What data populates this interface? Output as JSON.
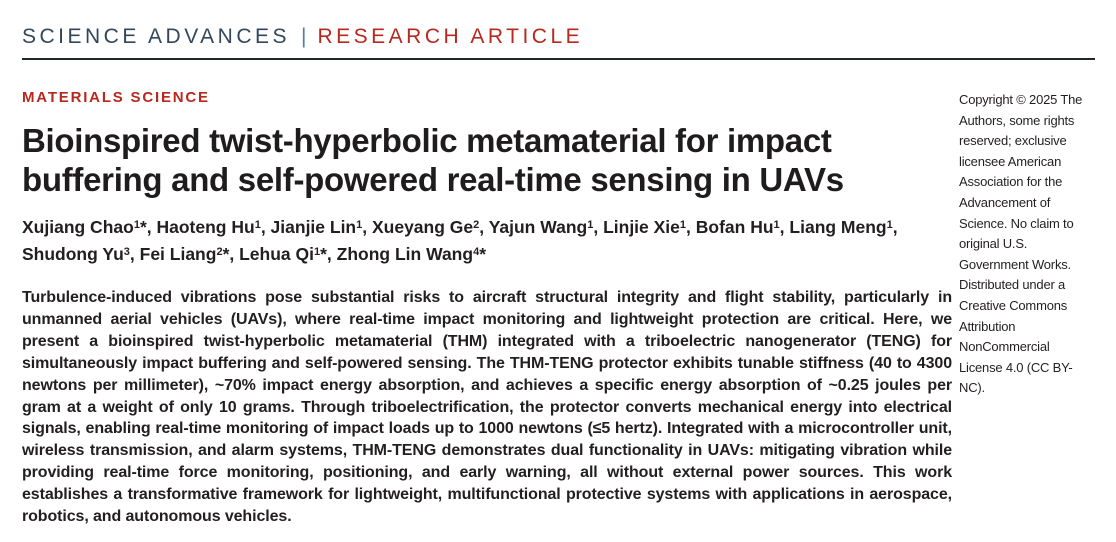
{
  "header": {
    "journal": "SCIENCE ADVANCES",
    "separator": "|",
    "article_type": "RESEARCH ARTICLE"
  },
  "section": {
    "label": "MATERIALS SCIENCE"
  },
  "article": {
    "title": "Bioinspired twist-hyperbolic metamaterial for impact buffering and self-powered real-time sensing in UAVs",
    "authors": [
      {
        "name": "Xujiang Chao",
        "affiliation": "1",
        "corresponding": true
      },
      {
        "name": "Haoteng Hu",
        "affiliation": "1",
        "corresponding": false
      },
      {
        "name": "Jianjie Lin",
        "affiliation": "1",
        "corresponding": false
      },
      {
        "name": "Xueyang Ge",
        "affiliation": "2",
        "corresponding": false
      },
      {
        "name": "Yajun Wang",
        "affiliation": "1",
        "corresponding": false
      },
      {
        "name": "Linjie Xie",
        "affiliation": "1",
        "corresponding": false
      },
      {
        "name": "Bofan Hu",
        "affiliation": "1",
        "corresponding": false
      },
      {
        "name": "Liang Meng",
        "affiliation": "1",
        "corresponding": false
      },
      {
        "name": "Shudong Yu",
        "affiliation": "3",
        "corresponding": false
      },
      {
        "name": "Fei Liang",
        "affiliation": "2",
        "corresponding": true
      },
      {
        "name": "Lehua Qi",
        "affiliation": "1",
        "corresponding": true
      },
      {
        "name": "Zhong Lin Wang",
        "affiliation": "4",
        "corresponding": true
      }
    ],
    "abstract": "Turbulence-induced vibrations pose substantial risks to aircraft structural integrity and flight stability, particularly in unmanned aerial vehicles (UAVs), where real-time impact monitoring and lightweight protection are critical. Here, we present a bioinspired twist-hyperbolic metamaterial (THM) integrated with a triboelectric nanogenerator (TENG) for simultaneously impact buffering and self-powered sensing. The THM-TENG protector exhibits tunable stiffness (40 to 4300 newtons per millimeter), ~70% impact energy absorption, and achieves a specific energy absorption of ~0.25 joules per gram at a weight of only 10 grams. Through triboelectrification, the protector converts mechanical energy into electrical signals, enabling real-time monitoring of impact loads up to 1000 newtons (≤5 hertz). Integrated with a microcontroller unit, wireless transmission, and alarm systems, THM-TENG demonstrates dual functionality in UAVs: mitigating vibration while providing real-time force monitoring, positioning, and early warning, all without external power sources. This work establishes a transformative framework for lightweight, multifunctional protective systems with applications in aerospace, robotics, and autonomous vehicles."
  },
  "copyright": {
    "text": "Copyright © 2025 The Authors, some rights reserved; exclusive licensee American Association for the Advancement of Science. No claim to original U.S. Government Works. Distributed under a Creative Commons Attribution NonCommercial License 4.0 (CC BY-NC)."
  },
  "colors": {
    "journal_navy": "#33475b",
    "separator_blue": "#4f7fae",
    "accent_red": "#b7281e",
    "text_dark": "#231f20",
    "rule_dark": "#20262b"
  }
}
